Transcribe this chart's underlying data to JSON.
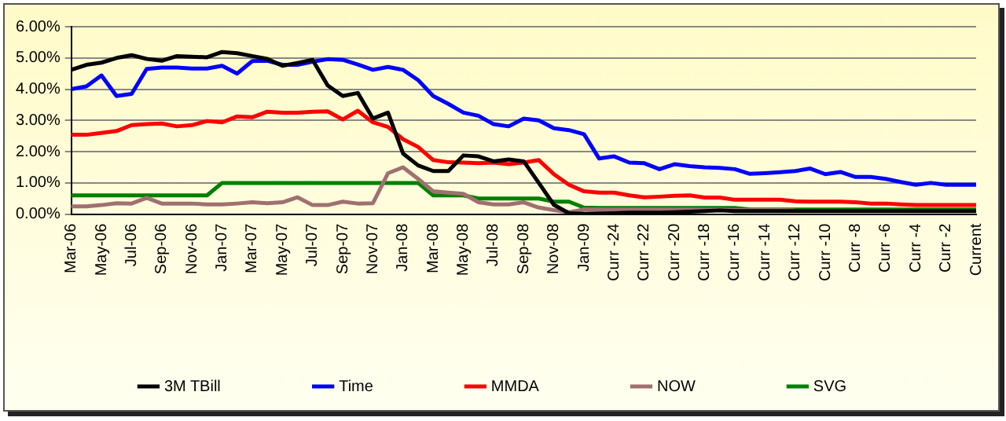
{
  "chart_data": {
    "type": "line",
    "categories": [
      "Mar-06",
      null,
      "May-06",
      null,
      "Jul-06",
      null,
      "Sep-06",
      null,
      "Nov-06",
      null,
      "Jan-07",
      null,
      "Mar-07",
      null,
      "May-07",
      null,
      "Jul-07",
      null,
      "Sep-07",
      null,
      "Nov-07",
      null,
      "Jan-08",
      null,
      "Mar-08",
      null,
      "May-08",
      null,
      "Jul-08",
      null,
      "Sep-08",
      null,
      "Nov-08",
      null,
      "Jan-09",
      null,
      "Curr -24",
      null,
      "Curr -22",
      null,
      "Curr -20",
      null,
      "Curr -18",
      null,
      "Curr -16",
      null,
      "Curr -14",
      null,
      "Curr -12",
      null,
      "Curr -10",
      null,
      "Curr -8",
      null,
      "Curr -6",
      null,
      "Curr -4",
      null,
      "Curr -2",
      null,
      "Current"
    ],
    "series": [
      {
        "name": "3M TBill",
        "color": "#000000",
        "values": [
          4.62,
          4.78,
          4.85,
          5.0,
          5.09,
          4.97,
          4.91,
          5.06,
          5.04,
          5.02,
          5.19,
          5.15,
          5.06,
          4.97,
          4.75,
          4.84,
          4.94,
          4.12,
          3.78,
          3.88,
          3.06,
          3.25,
          1.94,
          1.56,
          1.38,
          1.38,
          1.88,
          1.85,
          1.69,
          1.75,
          1.69,
          1.0,
          0.3,
          0.03,
          0.01,
          0.02,
          0.03,
          0.05,
          0.05,
          0.05,
          0.06,
          0.08,
          0.1,
          0.12,
          0.1,
          0.1,
          0.1,
          0.1,
          0.1,
          0.1,
          0.1,
          0.1,
          0.1,
          0.1,
          0.1,
          0.1,
          0.1,
          0.1,
          0.1,
          0.1,
          0.1
        ]
      },
      {
        "name": "Time",
        "color": "#0000ff",
        "values": [
          4.0,
          4.09,
          4.44,
          3.78,
          3.85,
          4.65,
          4.69,
          4.69,
          4.66,
          4.66,
          4.75,
          4.5,
          4.9,
          4.91,
          4.78,
          4.78,
          4.88,
          4.96,
          4.94,
          4.79,
          4.62,
          4.71,
          4.62,
          4.29,
          3.78,
          3.53,
          3.25,
          3.15,
          2.88,
          2.81,
          3.06,
          3.0,
          2.75,
          2.69,
          2.56,
          1.78,
          1.85,
          1.65,
          1.63,
          1.44,
          1.6,
          1.54,
          1.5,
          1.48,
          1.44,
          1.29,
          1.31,
          1.34,
          1.38,
          1.46,
          1.28,
          1.35,
          1.19,
          1.19,
          1.13,
          1.03,
          0.94,
          1.0,
          0.94,
          0.94,
          0.94
        ]
      },
      {
        "name": "MMDA",
        "color": "#ff0000",
        "values": [
          2.54,
          2.54,
          2.6,
          2.66,
          2.85,
          2.88,
          2.9,
          2.81,
          2.85,
          2.98,
          2.94,
          3.13,
          3.1,
          3.28,
          3.25,
          3.25,
          3.28,
          3.29,
          3.03,
          3.31,
          2.94,
          2.79,
          2.4,
          2.15,
          1.73,
          1.66,
          1.65,
          1.63,
          1.65,
          1.6,
          1.65,
          1.73,
          1.28,
          0.94,
          0.73,
          0.69,
          0.69,
          0.6,
          0.54,
          0.56,
          0.59,
          0.6,
          0.53,
          0.53,
          0.46,
          0.46,
          0.46,
          0.46,
          0.41,
          0.4,
          0.4,
          0.4,
          0.38,
          0.34,
          0.34,
          0.31,
          0.29,
          0.29,
          0.29,
          0.29,
          0.29
        ]
      },
      {
        "name": "NOW",
        "color": "#a07070",
        "values": [
          0.25,
          0.25,
          0.29,
          0.35,
          0.34,
          0.52,
          0.34,
          0.34,
          0.34,
          0.31,
          0.31,
          0.34,
          0.38,
          0.35,
          0.38,
          0.54,
          0.29,
          0.29,
          0.4,
          0.34,
          0.35,
          1.31,
          1.5,
          1.13,
          0.73,
          0.69,
          0.65,
          0.38,
          0.31,
          0.31,
          0.38,
          0.21,
          0.13,
          0.06,
          0.15,
          0.15,
          0.15,
          0.15,
          0.15,
          0.15,
          0.15,
          0.15,
          0.14,
          0.14,
          0.13,
          0.13,
          0.13,
          0.13,
          0.12,
          null,
          null,
          null,
          null,
          null,
          null,
          null,
          null,
          null,
          null,
          null,
          null
        ]
      },
      {
        "name": "SVG",
        "color": "#008000",
        "values": [
          0.6,
          0.6,
          0.6,
          0.6,
          0.6,
          0.6,
          0.6,
          0.6,
          0.6,
          0.6,
          1.0,
          1.0,
          1.0,
          1.0,
          1.0,
          1.0,
          1.0,
          1.0,
          1.0,
          1.0,
          1.0,
          1.0,
          1.0,
          1.0,
          0.6,
          0.6,
          0.6,
          0.5,
          0.5,
          0.5,
          0.5,
          0.5,
          0.4,
          0.4,
          0.21,
          0.2,
          0.2,
          0.2,
          0.2,
          0.2,
          0.2,
          0.2,
          0.2,
          0.2,
          0.2,
          0.15,
          0.15,
          0.15,
          0.15,
          0.15,
          0.15,
          0.15,
          0.15,
          0.15,
          0.15,
          0.15,
          0.15,
          0.15,
          0.15,
          0.15,
          0.15
        ]
      }
    ],
    "ylim": [
      0,
      6
    ],
    "yticks": [
      {
        "value": 0,
        "label": "0.00%"
      },
      {
        "value": 1,
        "label": "1.00%"
      },
      {
        "value": 2,
        "label": "2.00%"
      },
      {
        "value": 3,
        "label": "3.00%"
      },
      {
        "value": 4,
        "label": "4.00%"
      },
      {
        "value": 5,
        "label": "5.00%"
      },
      {
        "value": 6,
        "label": "6.00%"
      }
    ],
    "grid": "y",
    "legend": "bottom",
    "marker": "none",
    "line_style": "solid"
  }
}
